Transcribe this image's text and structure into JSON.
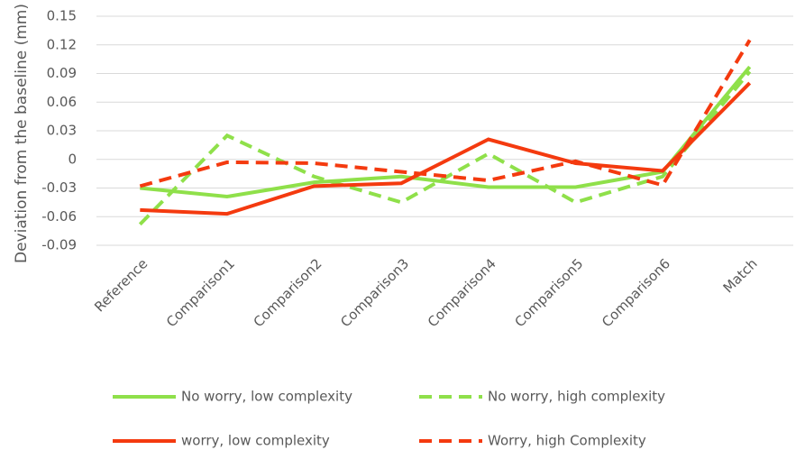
{
  "chart_data": {
    "type": "line",
    "y_label": "Deviation from the baseline (mm)",
    "categories": [
      "Reference",
      "Comparison1",
      "Comparison2",
      "Comparison3",
      "Comparison4",
      "Comparison5",
      "Comparison6",
      "Match"
    ],
    "series": [
      {
        "name": "No worry, low complexity",
        "color": "#8fe04a",
        "dash": false,
        "values": [
          -0.03,
          -0.039,
          -0.024,
          -0.018,
          -0.029,
          -0.029,
          -0.013,
          0.097
        ]
      },
      {
        "name": "No worry, high complexity",
        "color": "#8fe04a",
        "dash": true,
        "values": [
          -0.068,
          0.025,
          -0.018,
          -0.045,
          0.006,
          -0.045,
          -0.018,
          0.092
        ]
      },
      {
        "name": "worry, low complexity",
        "color": "#f43a0f",
        "dash": false,
        "values": [
          -0.053,
          -0.057,
          -0.028,
          -0.025,
          0.021,
          -0.004,
          -0.012,
          0.08
        ]
      },
      {
        "name": "Worry, high Complexity",
        "color": "#f43a0f",
        "dash": true,
        "values": [
          -0.028,
          -0.003,
          -0.004,
          -0.013,
          -0.022,
          -0.002,
          -0.027,
          0.125
        ]
      }
    ],
    "ylim": [
      -0.09,
      0.15
    ],
    "yticks": [
      -0.09,
      -0.06,
      -0.03,
      0,
      0.03,
      0.06,
      0.09,
      0.12,
      0.15
    ],
    "grid": true,
    "legend": "bottom"
  }
}
